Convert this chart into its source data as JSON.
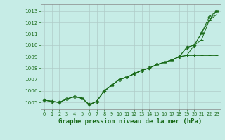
{
  "xlabel": "Graphe pression niveau de la mer (hPa)",
  "background_color": "#c6ece6",
  "grid_color": "#b0ccc8",
  "line_color": "#1a6b1a",
  "ylim": [
    1004.4,
    1013.6
  ],
  "xlim": [
    -0.5,
    23.5
  ],
  "yticks": [
    1005,
    1006,
    1007,
    1008,
    1009,
    1010,
    1011,
    1012,
    1013
  ],
  "xticks": [
    0,
    1,
    2,
    3,
    4,
    5,
    6,
    7,
    8,
    9,
    10,
    11,
    12,
    13,
    14,
    15,
    16,
    17,
    18,
    19,
    20,
    21,
    22,
    23
  ],
  "series": [
    [
      1005.2,
      1005.1,
      1005.0,
      1005.3,
      1005.5,
      1005.4,
      1004.8,
      1005.1,
      1006.0,
      1006.5,
      1007.0,
      1007.2,
      1007.5,
      1007.8,
      1008.0,
      1008.3,
      1008.5,
      1008.7,
      1009.0,
      1009.1,
      1009.1,
      1009.1,
      1009.1,
      1009.1
    ],
    [
      1005.2,
      1005.1,
      1005.0,
      1005.3,
      1005.5,
      1005.4,
      1004.8,
      1005.1,
      1006.0,
      1006.5,
      1007.0,
      1007.2,
      1007.5,
      1007.8,
      1008.0,
      1008.3,
      1008.5,
      1008.7,
      1009.0,
      1009.1,
      1010.0,
      1010.5,
      1012.2,
      1012.7
    ],
    [
      1005.2,
      1005.1,
      1005.0,
      1005.3,
      1005.5,
      1005.4,
      1004.8,
      1005.1,
      1006.0,
      1006.5,
      1007.0,
      1007.2,
      1007.5,
      1007.8,
      1008.0,
      1008.3,
      1008.5,
      1008.7,
      1009.0,
      1009.8,
      1010.0,
      1011.1,
      1012.2,
      1013.0
    ],
    [
      1005.2,
      1005.1,
      1005.0,
      1005.3,
      1005.5,
      1005.4,
      1004.8,
      1005.1,
      1006.0,
      1006.5,
      1007.0,
      1007.2,
      1007.5,
      1007.8,
      1008.0,
      1008.3,
      1008.5,
      1008.7,
      1009.0,
      1009.8,
      1010.0,
      1011.1,
      1012.5,
      1013.0
    ]
  ],
  "marker_series": [
    0,
    1,
    2,
    3
  ],
  "marker_styles": [
    "+",
    "+",
    "+",
    "D"
  ],
  "marker_sizes": [
    3,
    3,
    3,
    2
  ]
}
